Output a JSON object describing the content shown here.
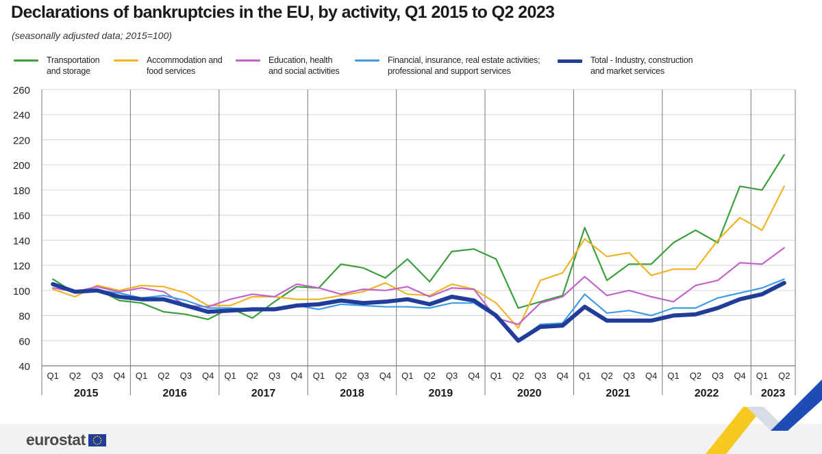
{
  "title": "Declarations of bankruptcies in the EU, by activity, Q1 2015 to Q2 2023",
  "subtitle": "(seasonally adjusted data; 2015=100)",
  "brand": {
    "name": "eurostat",
    "flag_icon": "eu-flag-icon"
  },
  "chart_data": {
    "type": "line",
    "ylim": [
      40,
      260
    ],
    "yticks": [
      40,
      60,
      80,
      100,
      120,
      140,
      160,
      180,
      200,
      220,
      240,
      260
    ],
    "grid": "horizontal",
    "legend_position": "top",
    "quarters": [
      "Q1",
      "Q2",
      "Q3",
      "Q4",
      "Q1",
      "Q2",
      "Q3",
      "Q4",
      "Q1",
      "Q2",
      "Q3",
      "Q4",
      "Q1",
      "Q2",
      "Q3",
      "Q4",
      "Q1",
      "Q2",
      "Q3",
      "Q4",
      "Q1",
      "Q2",
      "Q3",
      "Q4",
      "Q1",
      "Q2",
      "Q3",
      "Q4",
      "Q1",
      "Q2",
      "Q3",
      "Q4",
      "Q1",
      "Q2"
    ],
    "years": [
      "2015",
      "2016",
      "2017",
      "2018",
      "2019",
      "2020",
      "2021",
      "2022",
      "2023"
    ],
    "series": [
      {
        "name": "Transportation\nand storage",
        "color": "#3a9e3a",
        "width": 2.2,
        "values": [
          109,
          98,
          101,
          92,
          90,
          83,
          81,
          77,
          86,
          78,
          91,
          103,
          102,
          121,
          118,
          110,
          125,
          107,
          131,
          133,
          125,
          86,
          91,
          96,
          150,
          108,
          121,
          121,
          138,
          148,
          138,
          183,
          180,
          208
        ]
      },
      {
        "name": "Accommodation and\nfood services",
        "color": "#f0b323",
        "width": 2.2,
        "values": [
          101,
          95,
          104,
          100,
          104,
          103,
          98,
          88,
          88,
          95,
          95,
          93,
          93,
          96,
          99,
          106,
          97,
          96,
          105,
          101,
          90,
          70,
          108,
          114,
          141,
          127,
          130,
          112,
          117,
          117,
          140,
          158,
          148,
          183
        ]
      },
      {
        "name": "Education,  health\nand social activities",
        "color": "#c163c9",
        "width": 2.2,
        "values": [
          102,
          99,
          103,
          99,
          102,
          99,
          88,
          87,
          93,
          97,
          95,
          105,
          102,
          97,
          101,
          100,
          103,
          95,
          102,
          101,
          78,
          73,
          90,
          95,
          111,
          96,
          100,
          95,
          91,
          104,
          108,
          122,
          121,
          134
        ]
      },
      {
        "name": "Financial, insurance, real estate activities;\nprofessional and support services",
        "color": "#3d9be6",
        "width": 2.2,
        "values": [
          105,
          99,
          100,
          98,
          94,
          96,
          92,
          86,
          86,
          85,
          86,
          88,
          85,
          89,
          88,
          87,
          87,
          86,
          90,
          90,
          79,
          60,
          73,
          74,
          97,
          82,
          84,
          80,
          86,
          86,
          94,
          98,
          102,
          109
        ]
      },
      {
        "name": "Total - Industry, construction\nand market services",
        "color": "#1f3d99",
        "width": 6,
        "values": [
          105,
          99,
          100,
          95,
          93,
          93,
          88,
          83,
          84,
          85,
          85,
          88,
          89,
          92,
          90,
          91,
          93,
          89,
          95,
          92,
          80,
          60,
          71,
          72,
          87,
          76,
          76,
          76,
          80,
          81,
          86,
          93,
          97,
          106
        ]
      }
    ]
  }
}
